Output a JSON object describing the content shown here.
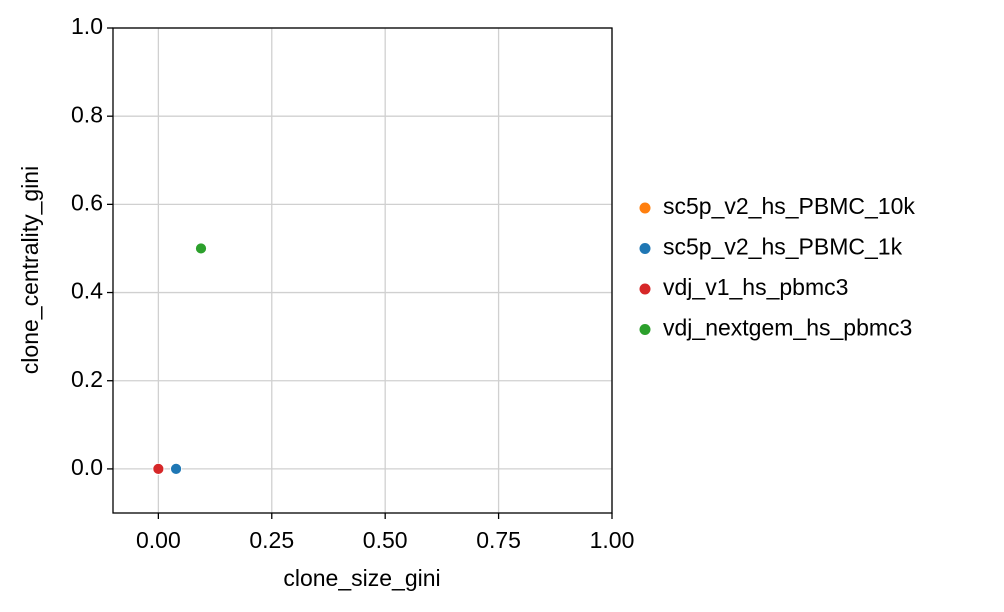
{
  "chart_data": {
    "type": "scatter",
    "x_label": "clone_size_gini",
    "y_label": "clone_centrality_gini",
    "xlim": [
      -0.1,
      1.0
    ],
    "ylim": [
      -0.1,
      1.0
    ],
    "xticks": [
      {
        "value": 0,
        "label": "0.00"
      },
      {
        "value": 0.25,
        "label": "0.25"
      },
      {
        "value": 0.5,
        "label": "0.50"
      },
      {
        "value": 0.75,
        "label": "0.75"
      },
      {
        "value": 1,
        "label": "1.00"
      }
    ],
    "yticks": [
      {
        "value": 0,
        "label": "0.0"
      },
      0.2,
      0.4,
      0.6,
      0.8,
      {
        "value": 1,
        "label": "1.0"
      }
    ],
    "grid": true,
    "legend": "outside right",
    "series": [
      {
        "name": "sc5p_v2_hs_PBMC_10k",
        "color": "#ff7f0e",
        "x": [
          0.0
        ],
        "values": [
          0.0
        ]
      },
      {
        "name": "sc5p_v2_hs_PBMC_1k",
        "color": "#1f77b4",
        "x": [
          0.039
        ],
        "values": [
          0.0
        ]
      },
      {
        "name": "vdj_v1_hs_pbmc3",
        "color": "#d62728",
        "x": [
          0.0
        ],
        "values": [
          0.0
        ]
      },
      {
        "name": "vdj_nextgem_hs_pbmc3",
        "color": "#2ca02c",
        "x": [
          0.094
        ],
        "values": [
          0.5
        ]
      }
    ]
  }
}
